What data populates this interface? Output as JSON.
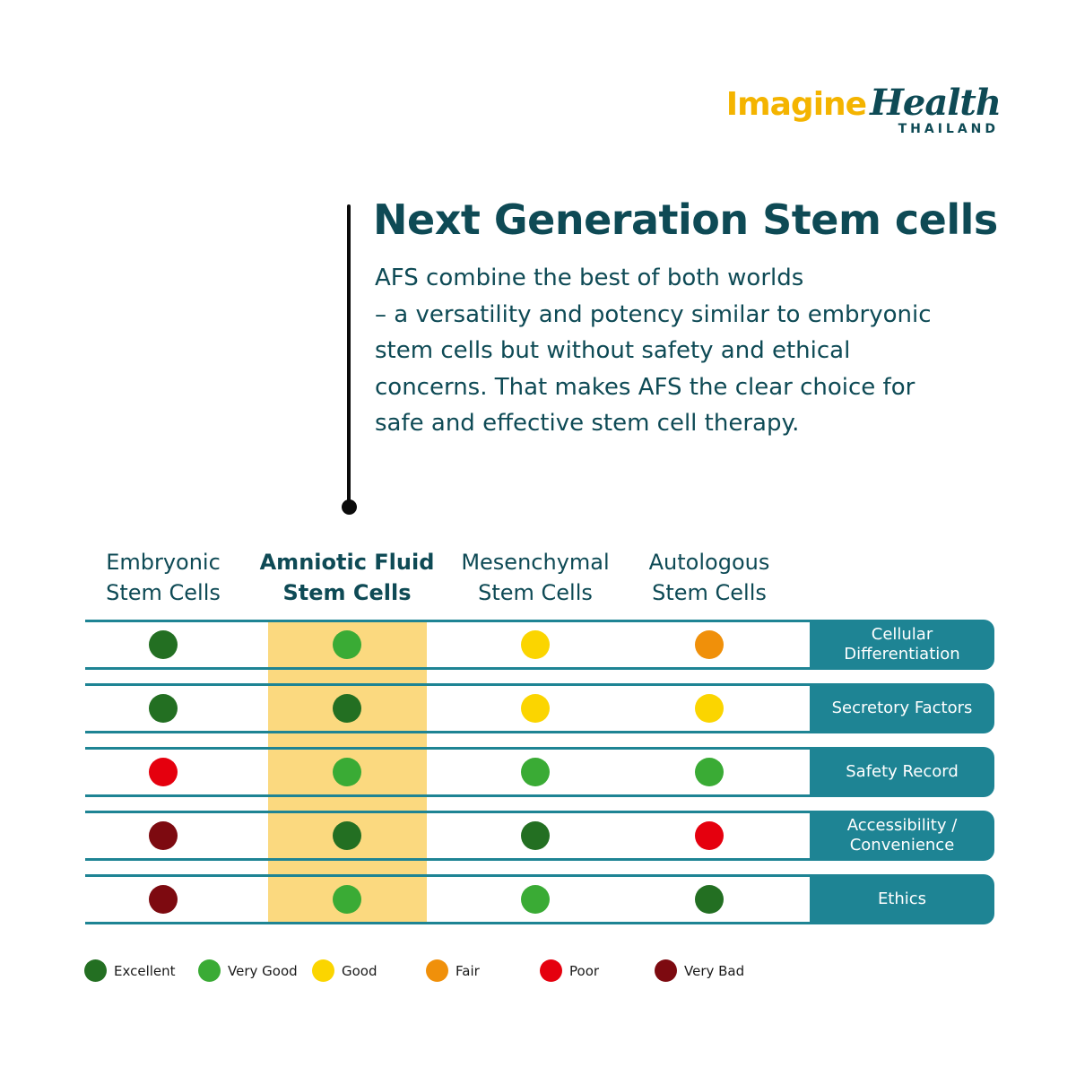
{
  "brand": {
    "imagine": "Imagine",
    "health": "Health",
    "country": "THAILAND"
  },
  "title": "Next Generation Stem cells",
  "description": [
    "AFS combine the best of both worlds",
    "– a versatility and potency similar to embryonic",
    "stem cells but without safety and ethical",
    "concerns. That makes AFS the clear choice for",
    "safe and effective stem cell therapy."
  ],
  "columns": [
    {
      "line1": "Embryonic",
      "line2": "Stem Cells",
      "bold": false
    },
    {
      "line1": "Amniotic Fluid",
      "line2": "Stem Cells",
      "bold": true
    },
    {
      "line1": "Mesenchymal",
      "line2": "Stem Cells",
      "bold": false
    },
    {
      "line1": "Autologous",
      "line2": "Stem Cells",
      "bold": false
    }
  ],
  "rows": [
    {
      "label": "Cellular\nDifferentiation",
      "ratings": [
        "Excellent",
        "Very Good",
        "Good",
        "Fair"
      ]
    },
    {
      "label": "Secretory Factors",
      "ratings": [
        "Excellent",
        "Excellent",
        "Good",
        "Good"
      ]
    },
    {
      "label": "Safety Record",
      "ratings": [
        "Poor",
        "Very Good",
        "Very Good",
        "Very Good"
      ]
    },
    {
      "label": "Accessibility /\nConvenience",
      "ratings": [
        "Very Bad",
        "Excellent",
        "Excellent",
        "Poor"
      ]
    },
    {
      "label": "Ethics",
      "ratings": [
        "Very Bad",
        "Very Good",
        "Very Good",
        "Excellent"
      ]
    }
  ],
  "legend": [
    {
      "label": "Excellent",
      "color": "#236f22"
    },
    {
      "label": "Very Good",
      "color": "#3aab35"
    },
    {
      "label": "Good",
      "color": "#fbd500"
    },
    {
      "label": "Fair",
      "color": "#f0900a"
    },
    {
      "label": "Poor",
      "color": "#e5000e"
    },
    {
      "label": "Very Bad",
      "color": "#7d0a10"
    }
  ],
  "colors": {
    "teal": "#1e8494",
    "dark_teal": "#0e4a55",
    "highlight": "#fbd97f",
    "brand_yellow": "#f4b400"
  }
}
